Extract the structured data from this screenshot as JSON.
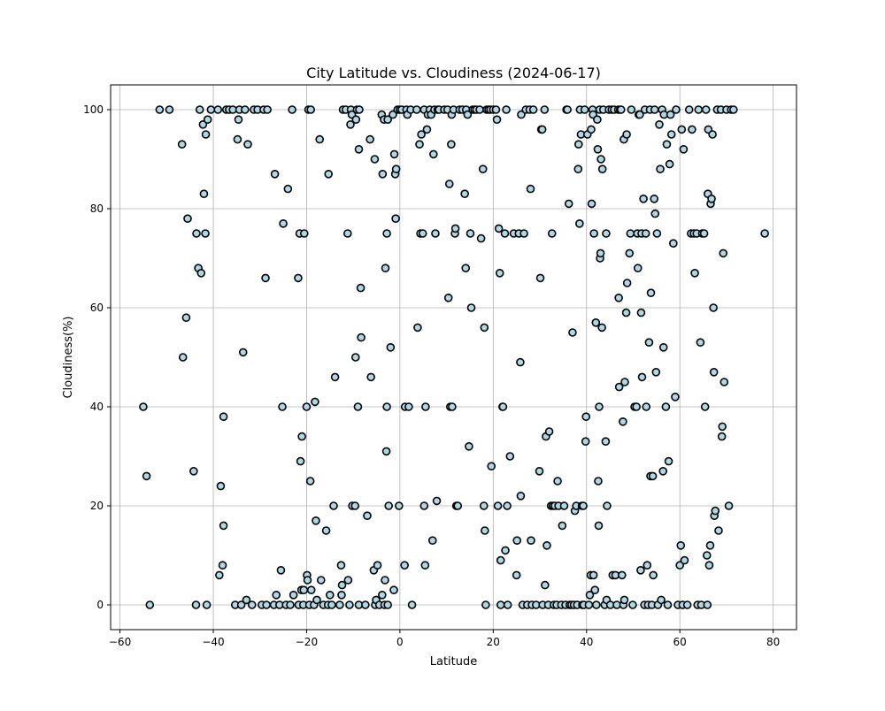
{
  "chart_data": {
    "type": "scatter",
    "title": "City Latitude vs. Cloudiness (2024-06-17)",
    "xlabel": "Latitude",
    "ylabel": "Cloudiness(%)",
    "xlim": [
      -62,
      85
    ],
    "ylim": [
      -5,
      105
    ],
    "xticks": [
      -60,
      -40,
      -20,
      0,
      20,
      40,
      60,
      80
    ],
    "yticks": [
      0,
      20,
      40,
      60,
      80,
      100
    ],
    "grid": true,
    "marker": {
      "fill": "#add8e6",
      "edge": "#000000"
    },
    "points": [
      [
        -55,
        40
      ],
      [
        -54.3,
        26
      ],
      [
        -53.6,
        0
      ],
      [
        -51.5,
        100
      ],
      [
        -49.4,
        100
      ],
      [
        -46.7,
        93
      ],
      [
        -46.5,
        50
      ],
      [
        -45.8,
        58
      ],
      [
        -45.5,
        78
      ],
      [
        -44.2,
        27
      ],
      [
        -43.7,
        0
      ],
      [
        -43.6,
        75
      ],
      [
        -43.2,
        68
      ],
      [
        -42.9,
        100
      ],
      [
        -42.6,
        67
      ],
      [
        -42.2,
        97
      ],
      [
        -42,
        83
      ],
      [
        -41.7,
        75
      ],
      [
        -41.6,
        95
      ],
      [
        -41.4,
        0
      ],
      [
        -41.2,
        98
      ],
      [
        -40.5,
        100
      ],
      [
        -39,
        100
      ],
      [
        -38.7,
        6
      ],
      [
        -38.4,
        24
      ],
      [
        -38,
        8
      ],
      [
        -37.8,
        16
      ],
      [
        -37.8,
        38
      ],
      [
        -37.2,
        100
      ],
      [
        -36.6,
        100
      ],
      [
        -35.8,
        100
      ],
      [
        -35.3,
        0
      ],
      [
        -34.8,
        94
      ],
      [
        -34.6,
        98
      ],
      [
        -34.4,
        100
      ],
      [
        -34,
        0
      ],
      [
        -33.6,
        51
      ],
      [
        -33.2,
        100
      ],
      [
        -32.9,
        1
      ],
      [
        -32.6,
        93
      ],
      [
        -31.7,
        0
      ],
      [
        -31.3,
        100
      ],
      [
        -30.5,
        100
      ],
      [
        -29.6,
        0
      ],
      [
        -29.2,
        100
      ],
      [
        -28.8,
        66
      ],
      [
        -28.6,
        0
      ],
      [
        -28.4,
        100
      ],
      [
        -27,
        0
      ],
      [
        -26.8,
        87
      ],
      [
        -26.5,
        2
      ],
      [
        -25.8,
        0
      ],
      [
        -25.5,
        7
      ],
      [
        -25.2,
        40
      ],
      [
        -25,
        77
      ],
      [
        -24.4,
        0
      ],
      [
        -24,
        84
      ],
      [
        -23.5,
        0
      ],
      [
        -23.1,
        100
      ],
      [
        -22.8,
        2
      ],
      [
        -21.8,
        66
      ],
      [
        -21.7,
        0
      ],
      [
        -21.5,
        75
      ],
      [
        -21.3,
        29
      ],
      [
        -21.1,
        3
      ],
      [
        -21,
        34
      ],
      [
        -20.7,
        0
      ],
      [
        -20.6,
        3
      ],
      [
        -20.5,
        75
      ],
      [
        -20,
        40
      ],
      [
        -19.9,
        6
      ],
      [
        -19.8,
        5
      ],
      [
        -19.6,
        100
      ],
      [
        -19.4,
        0
      ],
      [
        -19.2,
        25
      ],
      [
        -19.1,
        100
      ],
      [
        -19,
        3
      ],
      [
        -18.4,
        0
      ],
      [
        -18.2,
        41
      ],
      [
        -18,
        17
      ],
      [
        -17.8,
        1
      ],
      [
        -17.2,
        94
      ],
      [
        -16.9,
        5
      ],
      [
        -16.4,
        0
      ],
      [
        -15.8,
        15
      ],
      [
        -15.4,
        0
      ],
      [
        -15.3,
        87
      ],
      [
        -15,
        2
      ],
      [
        -14.6,
        0
      ],
      [
        -14.2,
        20
      ],
      [
        -13.9,
        46
      ],
      [
        -12.9,
        0
      ],
      [
        -12.6,
        8
      ],
      [
        -12.5,
        2
      ],
      [
        -12.4,
        4
      ],
      [
        -12.2,
        100
      ],
      [
        -11.6,
        100
      ],
      [
        -11.2,
        75
      ],
      [
        -11.1,
        5
      ],
      [
        -10.8,
        0
      ],
      [
        -10.6,
        97
      ],
      [
        -10.5,
        100
      ],
      [
        -10.3,
        99
      ],
      [
        -10.2,
        20
      ],
      [
        -9.6,
        20
      ],
      [
        -9.5,
        50
      ],
      [
        -9.4,
        98
      ],
      [
        -9.2,
        100
      ],
      [
        -9,
        40
      ],
      [
        -8.8,
        92
      ],
      [
        -8.8,
        0
      ],
      [
        -8.7,
        100
      ],
      [
        -8.4,
        64
      ],
      [
        -8.3,
        54
      ],
      [
        -7.4,
        0
      ],
      [
        -7,
        18
      ],
      [
        -6.4,
        94
      ],
      [
        -6.2,
        46
      ],
      [
        -5.6,
        7
      ],
      [
        -5.4,
        90
      ],
      [
        -5.3,
        0
      ],
      [
        -5.1,
        1
      ],
      [
        -4.8,
        8
      ],
      [
        -4.4,
        0
      ],
      [
        -3.9,
        99
      ],
      [
        -3.8,
        2
      ],
      [
        -3.7,
        87
      ],
      [
        -3.4,
        98
      ],
      [
        -3.3,
        0
      ],
      [
        -3.2,
        5
      ],
      [
        -3.1,
        68
      ],
      [
        -2.9,
        31
      ],
      [
        -2.8,
        75
      ],
      [
        -2.8,
        40
      ],
      [
        -2.6,
        98
      ],
      [
        -2.6,
        0
      ],
      [
        -2.4,
        20
      ],
      [
        -2,
        52
      ],
      [
        -1.5,
        99
      ],
      [
        -1.3,
        3
      ],
      [
        -1.2,
        91
      ],
      [
        -1,
        87
      ],
      [
        -0.9,
        78
      ],
      [
        -0.8,
        88
      ],
      [
        -0.5,
        100
      ],
      [
        -0.2,
        20
      ],
      [
        0,
        100
      ],
      [
        0.4,
        100
      ],
      [
        1,
        8
      ],
      [
        1.1,
        40
      ],
      [
        1.4,
        100
      ],
      [
        1.6,
        99
      ],
      [
        1.9,
        40
      ],
      [
        2.3,
        100
      ],
      [
        2.6,
        0
      ],
      [
        3.6,
        100
      ],
      [
        3.8,
        56
      ],
      [
        4.2,
        93
      ],
      [
        4.4,
        75
      ],
      [
        4.6,
        95
      ],
      [
        4.9,
        75
      ],
      [
        5.2,
        100
      ],
      [
        5.2,
        20
      ],
      [
        5.4,
        8
      ],
      [
        5.5,
        40
      ],
      [
        5.8,
        96
      ],
      [
        6,
        99
      ],
      [
        6.4,
        100
      ],
      [
        6.7,
        99
      ],
      [
        7,
        13
      ],
      [
        7.2,
        91
      ],
      [
        7.4,
        100
      ],
      [
        7.6,
        75
      ],
      [
        7.9,
        21
      ],
      [
        8.1,
        100
      ],
      [
        8.4,
        100
      ],
      [
        9.5,
        100
      ],
      [
        10.2,
        100
      ],
      [
        10.4,
        62
      ],
      [
        10.6,
        85
      ],
      [
        10.8,
        40
      ],
      [
        11,
        93
      ],
      [
        11.1,
        99
      ],
      [
        11.2,
        40
      ],
      [
        11.5,
        100
      ],
      [
        11.8,
        75
      ],
      [
        11.9,
        76
      ],
      [
        12.1,
        20
      ],
      [
        12.4,
        20
      ],
      [
        12.8,
        100
      ],
      [
        13.4,
        100
      ],
      [
        13.9,
        83
      ],
      [
        14.1,
        68
      ],
      [
        14.2,
        100
      ],
      [
        14.5,
        99
      ],
      [
        14.8,
        32
      ],
      [
        15.1,
        75
      ],
      [
        15.6,
        100
      ],
      [
        15.3,
        60
      ],
      [
        16,
        100
      ],
      [
        16.4,
        100
      ],
      [
        17.1,
        100
      ],
      [
        17.4,
        74
      ],
      [
        17.8,
        88
      ],
      [
        18,
        20
      ],
      [
        18.1,
        56
      ],
      [
        18.2,
        15
      ],
      [
        18.4,
        0
      ],
      [
        18.6,
        100
      ],
      [
        19,
        100
      ],
      [
        19.4,
        100
      ],
      [
        19.6,
        28
      ],
      [
        20,
        100
      ],
      [
        20.6,
        100
      ],
      [
        20.8,
        98
      ],
      [
        21,
        20
      ],
      [
        21.2,
        76
      ],
      [
        21.4,
        67
      ],
      [
        21.6,
        9
      ],
      [
        21.6,
        0
      ],
      [
        22,
        40
      ],
      [
        22.1,
        40
      ],
      [
        22.5,
        75
      ],
      [
        22.6,
        11
      ],
      [
        22.8,
        100
      ],
      [
        23,
        20
      ],
      [
        23.1,
        0
      ],
      [
        23.6,
        30
      ],
      [
        24.4,
        75
      ],
      [
        25,
        6
      ],
      [
        25.1,
        13
      ],
      [
        25.5,
        75
      ],
      [
        25.8,
        49
      ],
      [
        25.9,
        22
      ],
      [
        26,
        99
      ],
      [
        26.3,
        0
      ],
      [
        26.6,
        75
      ],
      [
        27,
        100
      ],
      [
        27.3,
        0
      ],
      [
        27.8,
        100
      ],
      [
        28,
        84
      ],
      [
        28.1,
        13
      ],
      [
        28.3,
        0
      ],
      [
        28.6,
        100
      ],
      [
        29.2,
        0
      ],
      [
        29.9,
        27
      ],
      [
        30.1,
        66
      ],
      [
        30.3,
        96
      ],
      [
        30.5,
        96
      ],
      [
        30.6,
        0
      ],
      [
        31,
        100
      ],
      [
        31.1,
        4
      ],
      [
        31.3,
        34
      ],
      [
        31.5,
        12
      ],
      [
        31.8,
        0
      ],
      [
        32,
        35
      ],
      [
        32.4,
        20
      ],
      [
        32.6,
        75
      ],
      [
        32.8,
        20
      ],
      [
        33,
        0
      ],
      [
        33.2,
        20
      ],
      [
        33.6,
        0
      ],
      [
        33.8,
        25
      ],
      [
        34,
        20
      ],
      [
        34.6,
        0
      ],
      [
        34.8,
        16
      ],
      [
        35.2,
        20
      ],
      [
        35.5,
        0
      ],
      [
        35.7,
        100
      ],
      [
        35.9,
        100
      ],
      [
        36.2,
        81
      ],
      [
        36.4,
        0
      ],
      [
        36.8,
        0
      ],
      [
        37,
        55
      ],
      [
        37.3,
        0
      ],
      [
        37.5,
        19
      ],
      [
        37.8,
        20
      ],
      [
        38,
        0
      ],
      [
        38.2,
        88
      ],
      [
        38.3,
        93
      ],
      [
        38.5,
        77
      ],
      [
        38.6,
        100
      ],
      [
        38.8,
        95
      ],
      [
        39,
        20
      ],
      [
        39.1,
        0
      ],
      [
        39.3,
        20
      ],
      [
        39.4,
        0
      ],
      [
        39.6,
        100
      ],
      [
        39.8,
        33
      ],
      [
        39.9,
        38
      ],
      [
        40.2,
        95
      ],
      [
        40.5,
        0
      ],
      [
        40.7,
        2
      ],
      [
        40.9,
        6
      ],
      [
        41,
        96
      ],
      [
        41.1,
        81
      ],
      [
        41.3,
        100
      ],
      [
        41.4,
        99
      ],
      [
        41.5,
        6
      ],
      [
        41.6,
        75
      ],
      [
        41.8,
        3
      ],
      [
        42,
        57
      ],
      [
        42.1,
        0
      ],
      [
        42.3,
        98
      ],
      [
        42.4,
        92
      ],
      [
        42.5,
        25
      ],
      [
        42.6,
        16
      ],
      [
        42.7,
        40
      ],
      [
        42.8,
        100
      ],
      [
        42.9,
        70
      ],
      [
        43,
        71
      ],
      [
        43.1,
        90
      ],
      [
        43.3,
        56
      ],
      [
        43.4,
        88
      ],
      [
        43.6,
        100
      ],
      [
        43.9,
        0
      ],
      [
        44.1,
        33
      ],
      [
        44.2,
        75
      ],
      [
        44.3,
        1
      ],
      [
        44.4,
        20
      ],
      [
        44.8,
        100
      ],
      [
        45.1,
        0
      ],
      [
        45.4,
        100
      ],
      [
        45.6,
        6
      ],
      [
        45.9,
        100
      ],
      [
        46.2,
        6
      ],
      [
        46.5,
        0
      ],
      [
        46.8,
        100
      ],
      [
        46.9,
        62
      ],
      [
        47,
        44
      ],
      [
        47.2,
        100
      ],
      [
        47.4,
        100
      ],
      [
        47.6,
        6
      ],
      [
        47.8,
        37
      ],
      [
        47.9,
        0
      ],
      [
        48,
        94
      ],
      [
        48.1,
        1
      ],
      [
        48.2,
        45
      ],
      [
        48.5,
        59
      ],
      [
        48.6,
        95
      ],
      [
        48.7,
        65
      ],
      [
        49.2,
        71
      ],
      [
        49.4,
        75
      ],
      [
        49.6,
        100
      ],
      [
        49.9,
        0
      ],
      [
        50.3,
        40
      ],
      [
        50.7,
        40
      ],
      [
        50.9,
        75
      ],
      [
        51,
        68
      ],
      [
        51.2,
        99
      ],
      [
        51.4,
        99
      ],
      [
        51.6,
        7
      ],
      [
        51.7,
        59
      ],
      [
        51.8,
        75
      ],
      [
        51.9,
        46
      ],
      [
        52.2,
        82
      ],
      [
        52.4,
        0
      ],
      [
        52.5,
        100
      ],
      [
        52.7,
        75
      ],
      [
        52.8,
        40
      ],
      [
        53,
        8
      ],
      [
        53.2,
        0
      ],
      [
        53.4,
        53
      ],
      [
        53.6,
        100
      ],
      [
        53.7,
        26
      ],
      [
        53.8,
        63
      ],
      [
        54,
        0
      ],
      [
        54.2,
        26
      ],
      [
        54.3,
        6
      ],
      [
        54.5,
        82
      ],
      [
        54.6,
        100
      ],
      [
        54.7,
        79
      ],
      [
        54.9,
        47
      ],
      [
        55.1,
        75
      ],
      [
        55.3,
        0
      ],
      [
        55.6,
        97
      ],
      [
        55.8,
        88
      ],
      [
        56,
        1
      ],
      [
        56.2,
        100
      ],
      [
        56.4,
        27
      ],
      [
        56.5,
        52
      ],
      [
        56.6,
        99
      ],
      [
        57,
        40
      ],
      [
        57.2,
        93
      ],
      [
        57.4,
        0
      ],
      [
        57.6,
        29
      ],
      [
        57.8,
        89
      ],
      [
        58,
        99
      ],
      [
        58.2,
        95
      ],
      [
        58.6,
        73
      ],
      [
        59,
        42
      ],
      [
        59.2,
        100
      ],
      [
        59.6,
        0
      ],
      [
        60,
        8
      ],
      [
        60.2,
        12
      ],
      [
        60.4,
        96
      ],
      [
        60.6,
        0
      ],
      [
        60.8,
        92
      ],
      [
        61,
        9
      ],
      [
        61.6,
        0
      ],
      [
        62,
        100
      ],
      [
        62.4,
        75
      ],
      [
        62.6,
        96
      ],
      [
        63,
        75
      ],
      [
        63.2,
        67
      ],
      [
        63.6,
        75
      ],
      [
        63.8,
        0
      ],
      [
        64,
        100
      ],
      [
        64.4,
        53
      ],
      [
        64.6,
        0
      ],
      [
        64.8,
        75
      ],
      [
        65.2,
        75
      ],
      [
        65.4,
        40
      ],
      [
        65.6,
        100
      ],
      [
        65.8,
        10
      ],
      [
        65.9,
        0
      ],
      [
        66,
        83
      ],
      [
        66.1,
        96
      ],
      [
        66.3,
        8
      ],
      [
        66.5,
        12
      ],
      [
        66.6,
        81
      ],
      [
        66.8,
        82
      ],
      [
        67,
        95
      ],
      [
        67.2,
        60
      ],
      [
        67.3,
        47
      ],
      [
        67.4,
        18
      ],
      [
        67.6,
        19
      ],
      [
        68,
        100
      ],
      [
        68.3,
        15
      ],
      [
        68.8,
        100
      ],
      [
        69,
        34
      ],
      [
        69.1,
        36
      ],
      [
        69.3,
        71
      ],
      [
        69.5,
        45
      ],
      [
        70,
        100
      ],
      [
        70.5,
        20
      ],
      [
        71,
        100
      ],
      [
        71.5,
        100
      ],
      [
        78.2,
        75
      ]
    ]
  }
}
